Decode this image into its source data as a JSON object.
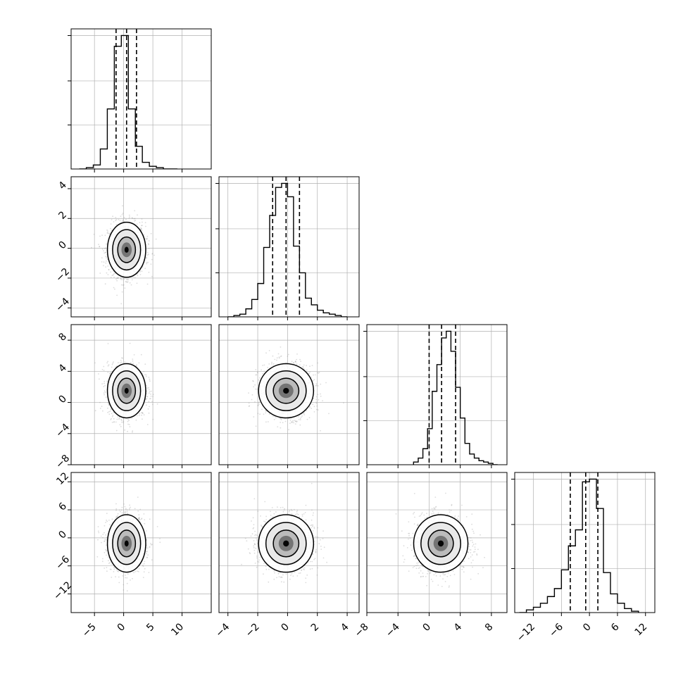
{
  "colors": {
    "axis": "#000000",
    "grid": "#b0b0b0",
    "scatter": "#9a9a9a",
    "histogram": "#000000",
    "quantile_line": "#000000"
  },
  "chart_data": {
    "type": "corner",
    "grid": true,
    "parameters": [
      {
        "id": "p1",
        "range": [
          -9,
          15
        ],
        "ticks": [
          -5,
          0,
          5,
          10
        ],
        "tick_labels": [
          "−5",
          "0",
          "5",
          "10"
        ],
        "quantiles": [
          -1.3,
          0.5,
          2.2
        ],
        "mean": 0.5,
        "std": 1.6,
        "histogram": {
          "type": "step",
          "bin_edges": [
            -7.6,
            -6.4,
            -5.2,
            -4.0,
            -2.8,
            -1.6,
            -0.4,
            0.8,
            2.0,
            3.2,
            4.4,
            5.6,
            6.8,
            8.0,
            9.2
          ],
          "counts": [
            0.0,
            0.01,
            0.03,
            0.15,
            0.45,
            0.92,
            1.0,
            0.45,
            0.17,
            0.05,
            0.02,
            0.01,
            0.0,
            0.0
          ]
        },
        "hist_ylim": [
          0,
          1.05
        ]
      },
      {
        "id": "p2",
        "range": [
          -4.6,
          4.8
        ],
        "ticks": [
          -4,
          -2,
          0,
          2,
          4
        ],
        "tick_labels": [
          "−4",
          "−2",
          "0",
          "2",
          "4"
        ],
        "quantiles": [
          -1.0,
          -0.1,
          0.8
        ],
        "mean": -0.1,
        "std": 0.9,
        "histogram": {
          "type": "step",
          "bin_edges": [
            -4.0,
            -3.6,
            -3.2,
            -2.8,
            -2.4,
            -2.0,
            -1.6,
            -1.2,
            -0.8,
            -0.4,
            0.0,
            0.4,
            0.8,
            1.2,
            1.6,
            2.0,
            2.4,
            2.8,
            3.2,
            3.6,
            4.0
          ],
          "counts": [
            0.0,
            0.01,
            0.02,
            0.06,
            0.13,
            0.25,
            0.52,
            0.76,
            0.97,
            1.0,
            0.9,
            0.53,
            0.33,
            0.14,
            0.09,
            0.05,
            0.03,
            0.02,
            0.01,
            0.0
          ]
        },
        "hist_ylim": [
          0,
          1.05
        ]
      },
      {
        "id": "p3",
        "range": [
          -8,
          10
        ],
        "ticks": [
          -8,
          -4,
          0,
          4,
          8
        ],
        "tick_labels": [
          "−8",
          "−4",
          "0",
          "4",
          "8"
        ],
        "quantiles": [
          0.0,
          1.6,
          3.4
        ],
        "mean": 1.5,
        "std": 1.7,
        "histogram": {
          "type": "step",
          "bin_edges": [
            -2.0,
            -1.4,
            -0.8,
            -0.2,
            0.4,
            1.0,
            1.6,
            2.2,
            2.8,
            3.4,
            4.0,
            4.6,
            5.2,
            5.8,
            6.4,
            7.0,
            7.6,
            8.2,
            8.8
          ],
          "counts": [
            0.02,
            0.05,
            0.12,
            0.27,
            0.55,
            0.75,
            0.95,
            1.0,
            0.85,
            0.58,
            0.35,
            0.16,
            0.08,
            0.05,
            0.03,
            0.02,
            0.01,
            0.0
          ]
        },
        "hist_ylim": [
          0,
          1.05
        ]
      },
      {
        "id": "p4",
        "range": [
          -16,
          14
        ],
        "ticks": [
          -12,
          -6,
          0,
          6,
          12
        ],
        "tick_labels": [
          "−12",
          "−6",
          "0",
          "6",
          "12"
        ],
        "quantiles": [
          -4.1,
          -0.8,
          1.8
        ],
        "mean": -1.2,
        "std": 3.0,
        "histogram": {
          "type": "step",
          "bin_edges": [
            -15.0,
            -13.5,
            -12.0,
            -10.5,
            -9.0,
            -7.5,
            -6.0,
            -4.5,
            -3.0,
            -1.5,
            0.0,
            1.5,
            3.0,
            4.5,
            6.0,
            7.5,
            9.0,
            10.5
          ],
          "counts": [
            0.0,
            0.02,
            0.04,
            0.07,
            0.12,
            0.18,
            0.32,
            0.5,
            0.62,
            0.98,
            1.0,
            0.78,
            0.3,
            0.14,
            0.07,
            0.03,
            0.01
          ]
        },
        "hist_ylim": [
          0,
          1.05
        ]
      }
    ],
    "pairs": [
      {
        "x": "p1",
        "y": "p2",
        "center": [
          0.5,
          -0.1
        ],
        "std": [
          1.6,
          0.9
        ],
        "contour_levels": 3
      },
      {
        "x": "p1",
        "y": "p3",
        "center": [
          0.5,
          1.5
        ],
        "std": [
          1.6,
          1.7
        ],
        "contour_levels": 3
      },
      {
        "x": "p2",
        "y": "p3",
        "center": [
          -0.1,
          1.5
        ],
        "std": [
          0.9,
          1.7
        ],
        "contour_levels": 3
      },
      {
        "x": "p1",
        "y": "p4",
        "center": [
          0.5,
          -1.2
        ],
        "std": [
          1.6,
          3.0
        ],
        "contour_levels": 3
      },
      {
        "x": "p2",
        "y": "p4",
        "center": [
          -0.1,
          -1.2
        ],
        "std": [
          0.9,
          3.0
        ],
        "contour_levels": 3
      },
      {
        "x": "p3",
        "y": "p4",
        "center": [
          1.5,
          -1.2
        ],
        "std": [
          1.7,
          3.0
        ],
        "contour_levels": 3
      }
    ]
  }
}
